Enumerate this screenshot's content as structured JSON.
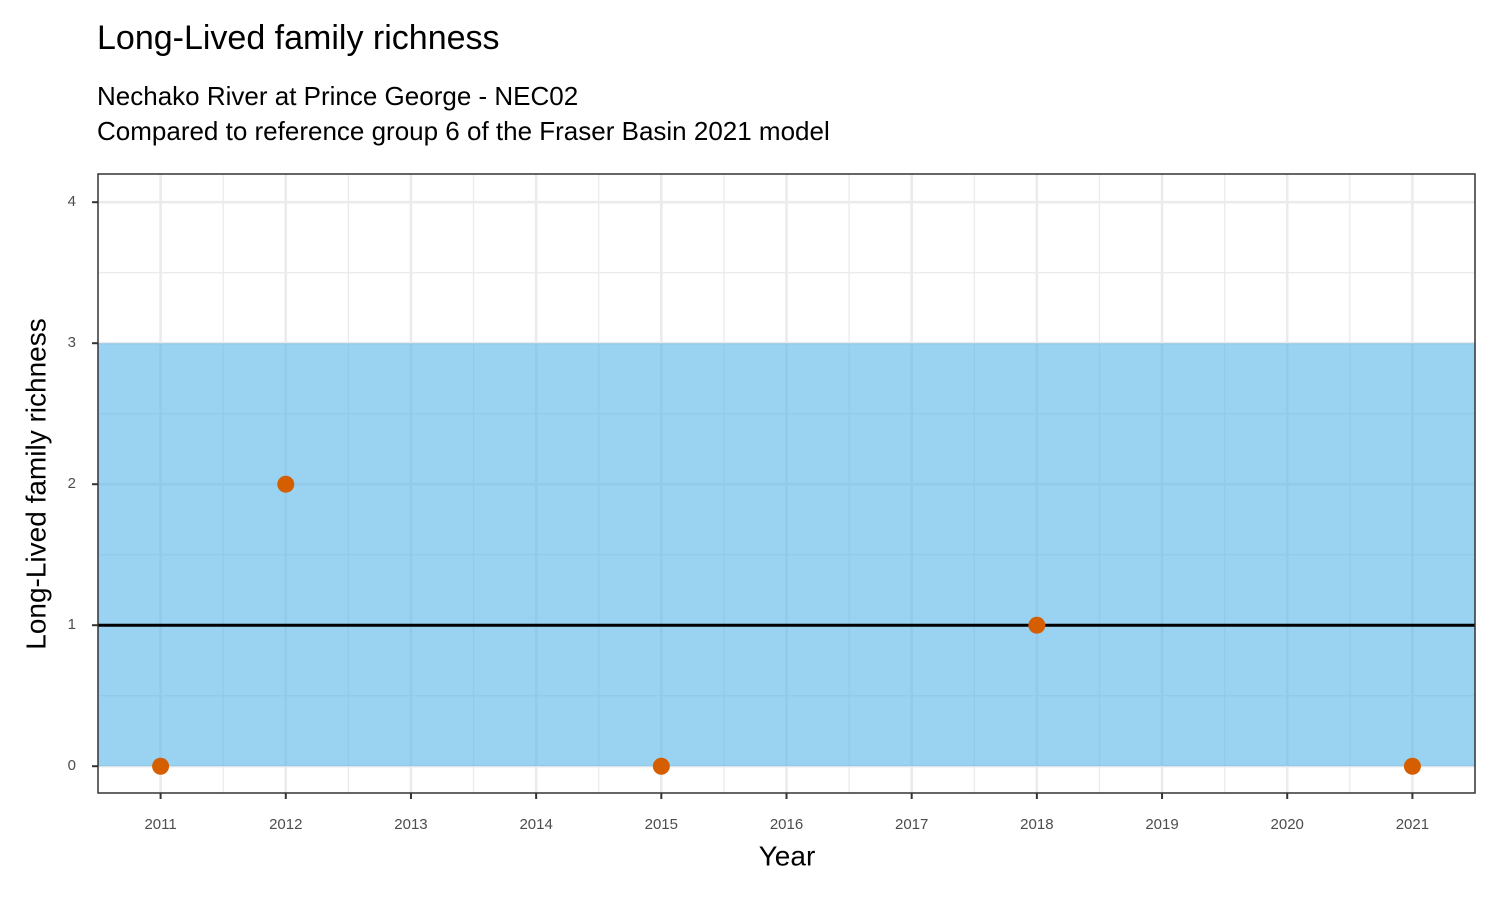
{
  "chart_data": {
    "type": "scatter",
    "title": "Long-Lived family richness",
    "subtitle": [
      "Nechako River at Prince George - NEC02",
      "Compared to reference group 6 of the Fraser Basin 2021 model"
    ],
    "x_label": "Year",
    "y_label": "Long-Lived family richness",
    "x": [
      2011,
      2012,
      2015,
      2018,
      2021
    ],
    "series": [
      {
        "color": "#d55e00",
        "values": [
          0,
          2,
          0,
          1,
          0
        ]
      }
    ],
    "reference_range": [
      0,
      3
    ],
    "reference_range_color": "#56b4e9",
    "reference_line": 1,
    "reference_line_color": "#000000",
    "xlim": [
      2010.5,
      2021.5
    ],
    "xticks": [
      2011,
      2012,
      2013,
      2014,
      2015,
      2016,
      2017,
      2018,
      2019,
      2020,
      2021
    ],
    "ylim": [
      -0.19,
      4.2
    ],
    "yticks": [
      0,
      1,
      2,
      3,
      4
    ],
    "grid": true
  }
}
